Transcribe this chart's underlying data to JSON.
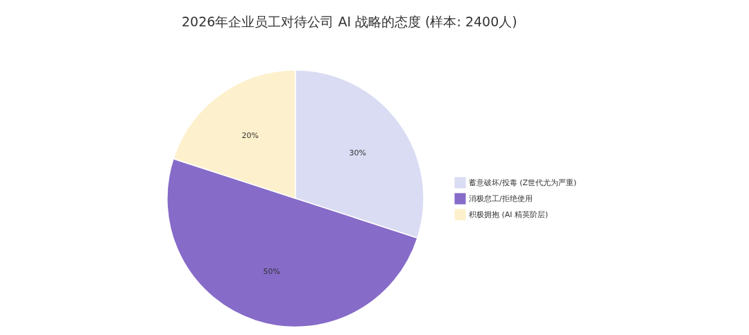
{
  "chart_data": {
    "type": "pie",
    "title": "2026年企业员工对待公司 AI 战略的态度 (样本: 2400人)",
    "categories": [
      "蓄意破坏/投毒 (Z世代尤为严重)",
      "消极怠工/拒绝使用",
      "积极拥抱 (AI 精英阶层)"
    ],
    "values": [
      30,
      50,
      20
    ],
    "colors": [
      "#d9dcf3",
      "#866bc9",
      "#fdf0cc"
    ],
    "value_labels": [
      "30%",
      "50%",
      "20%"
    ],
    "legend": "right"
  }
}
